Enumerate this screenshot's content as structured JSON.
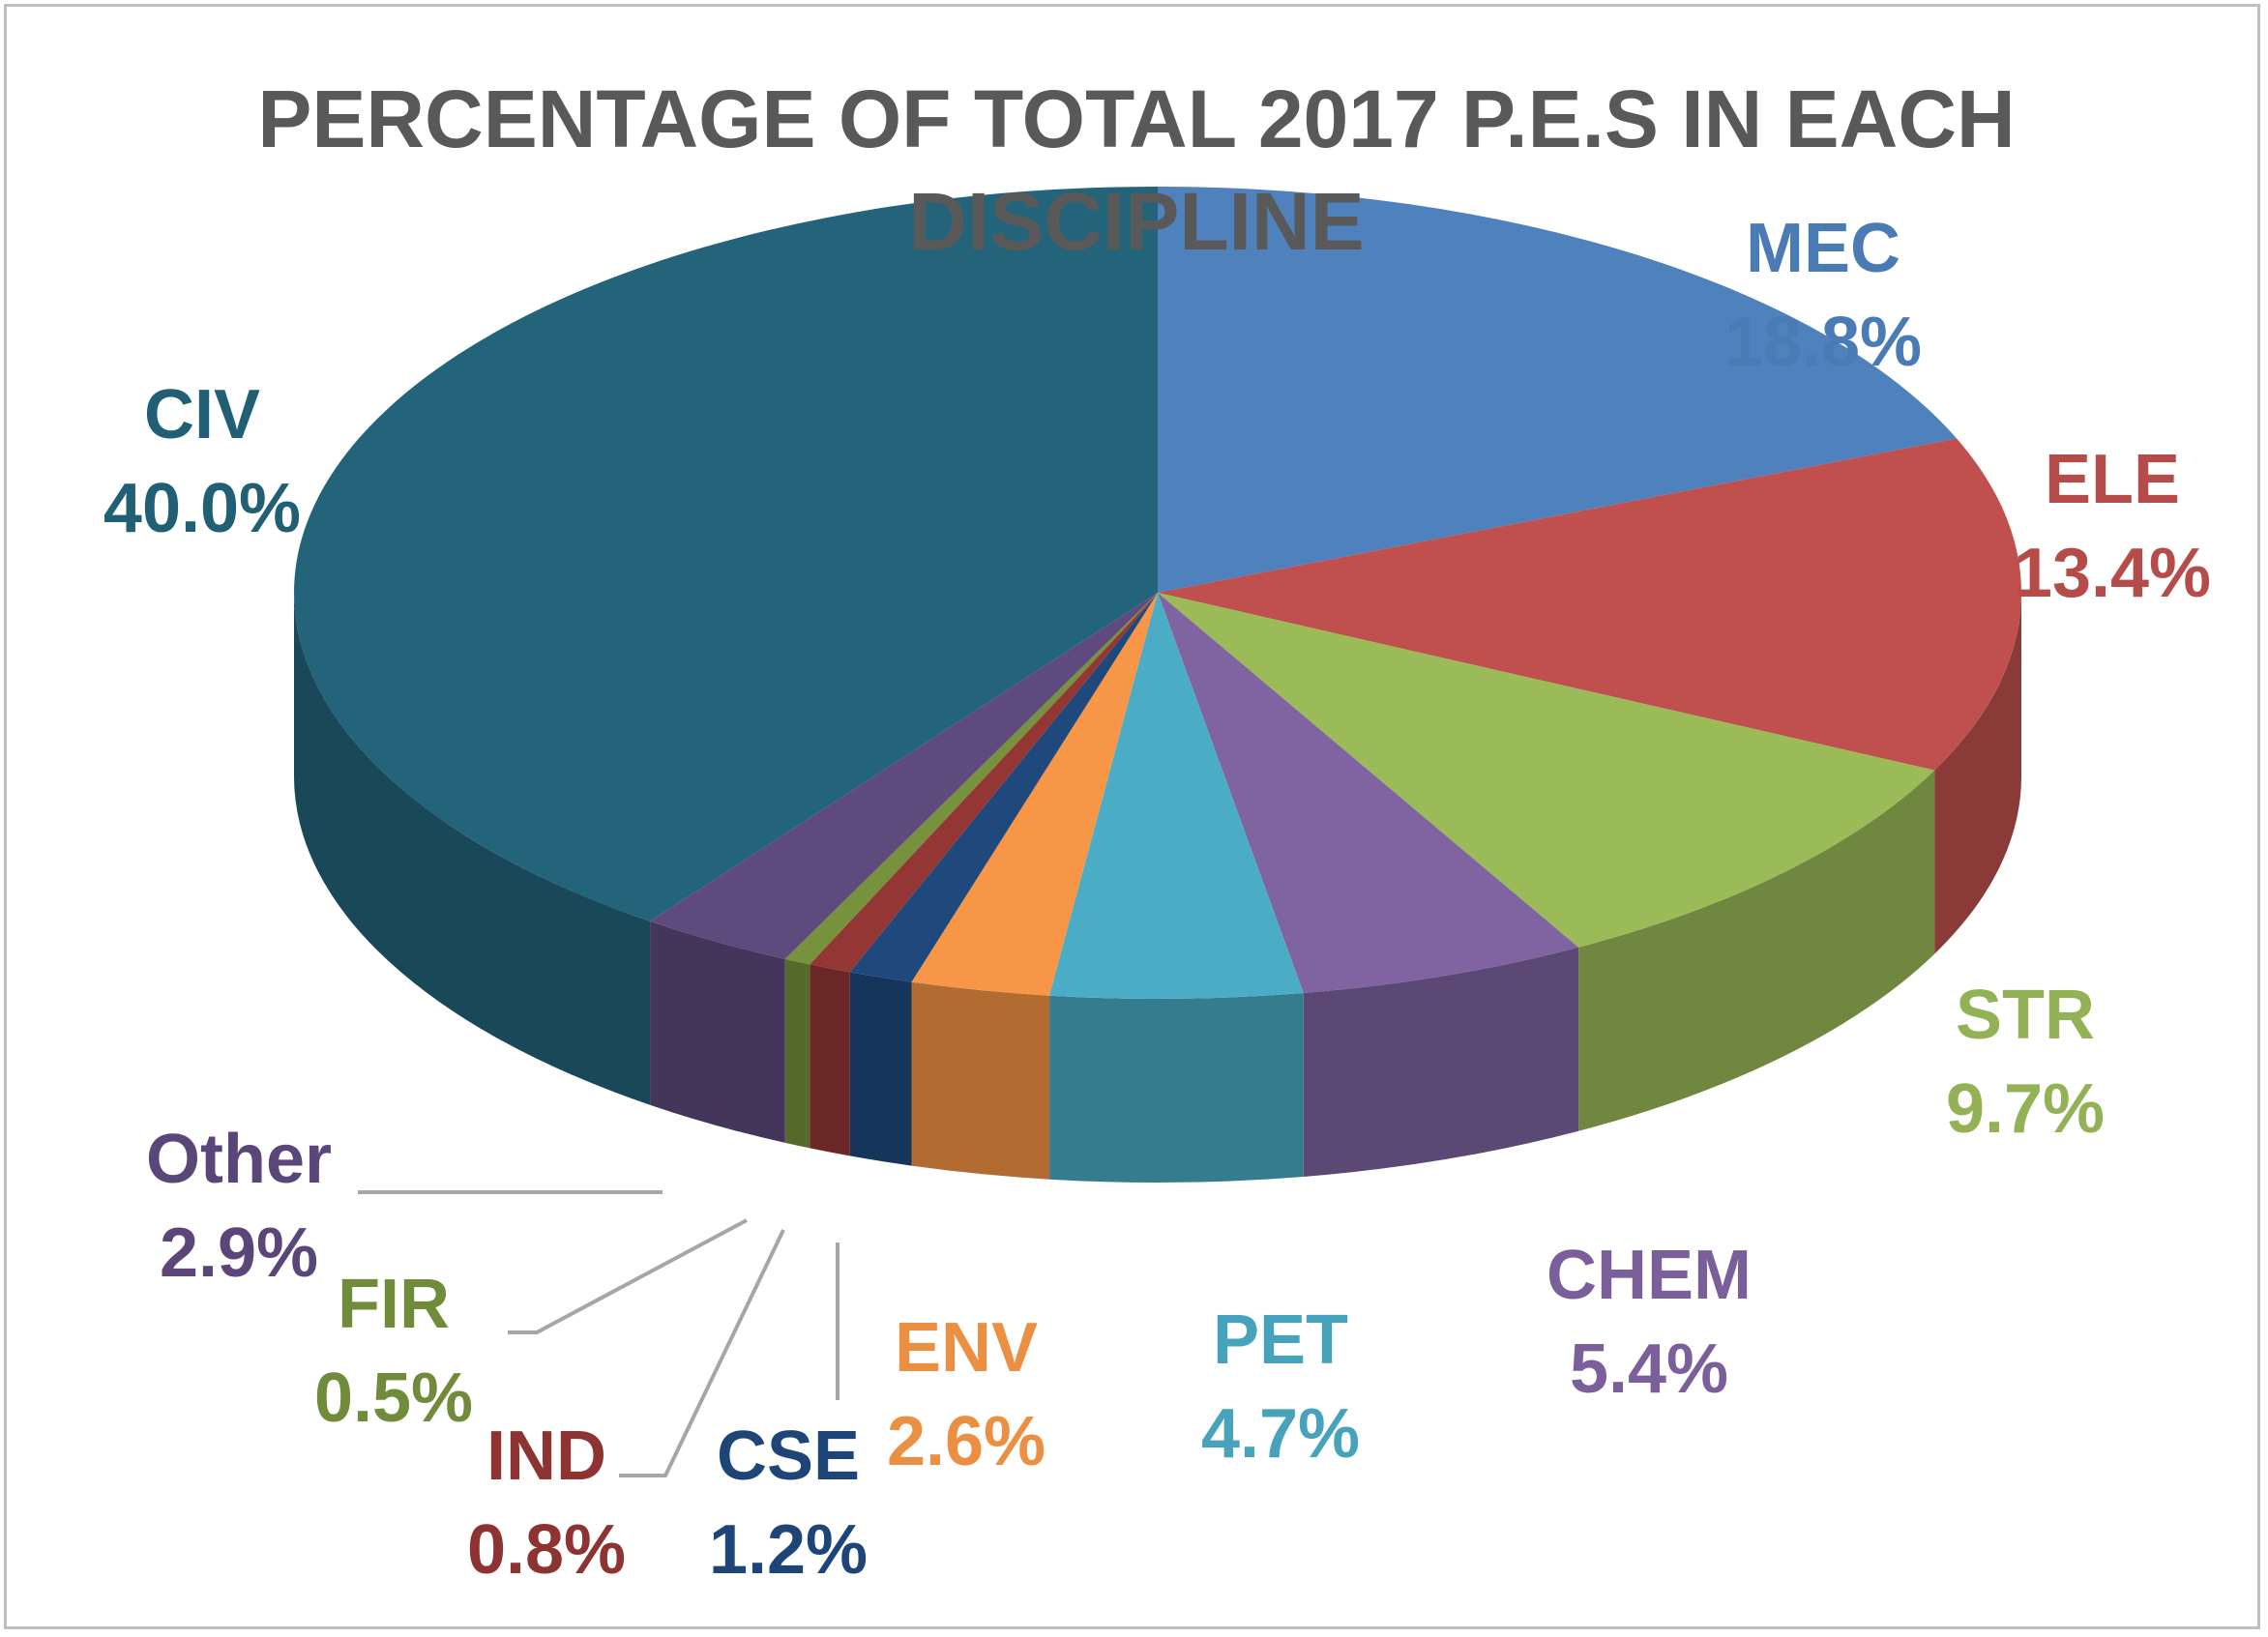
{
  "chart_data": {
    "type": "pie",
    "title": "PERCENTAGE OF TOTAL 2017 P.E.S IN EACH DISCIPLINE",
    "categories": [
      "MEC",
      "ELE",
      "STR",
      "CHEM",
      "PET",
      "ENV",
      "CSE",
      "IND",
      "FIR",
      "Other",
      "CIV"
    ],
    "values": [
      18.8,
      13.4,
      9.7,
      5.4,
      4.7,
      2.6,
      1.2,
      0.8,
      0.5,
      2.9,
      40.0
    ],
    "value_labels": [
      "18.8%",
      "13.4%",
      "9.7%",
      "5.4%",
      "4.7%",
      "2.6%",
      "1.2%",
      "0.8%",
      "0.5%",
      "2.9%",
      "40.0%"
    ],
    "colors": [
      "#4f81bd",
      "#c0504d",
      "#9bbb59",
      "#8064a2",
      "#4bacc6",
      "#f79646",
      "#1f497d",
      "#943634",
      "#76923c",
      "#5f4a7e",
      "#23647a"
    ]
  }
}
